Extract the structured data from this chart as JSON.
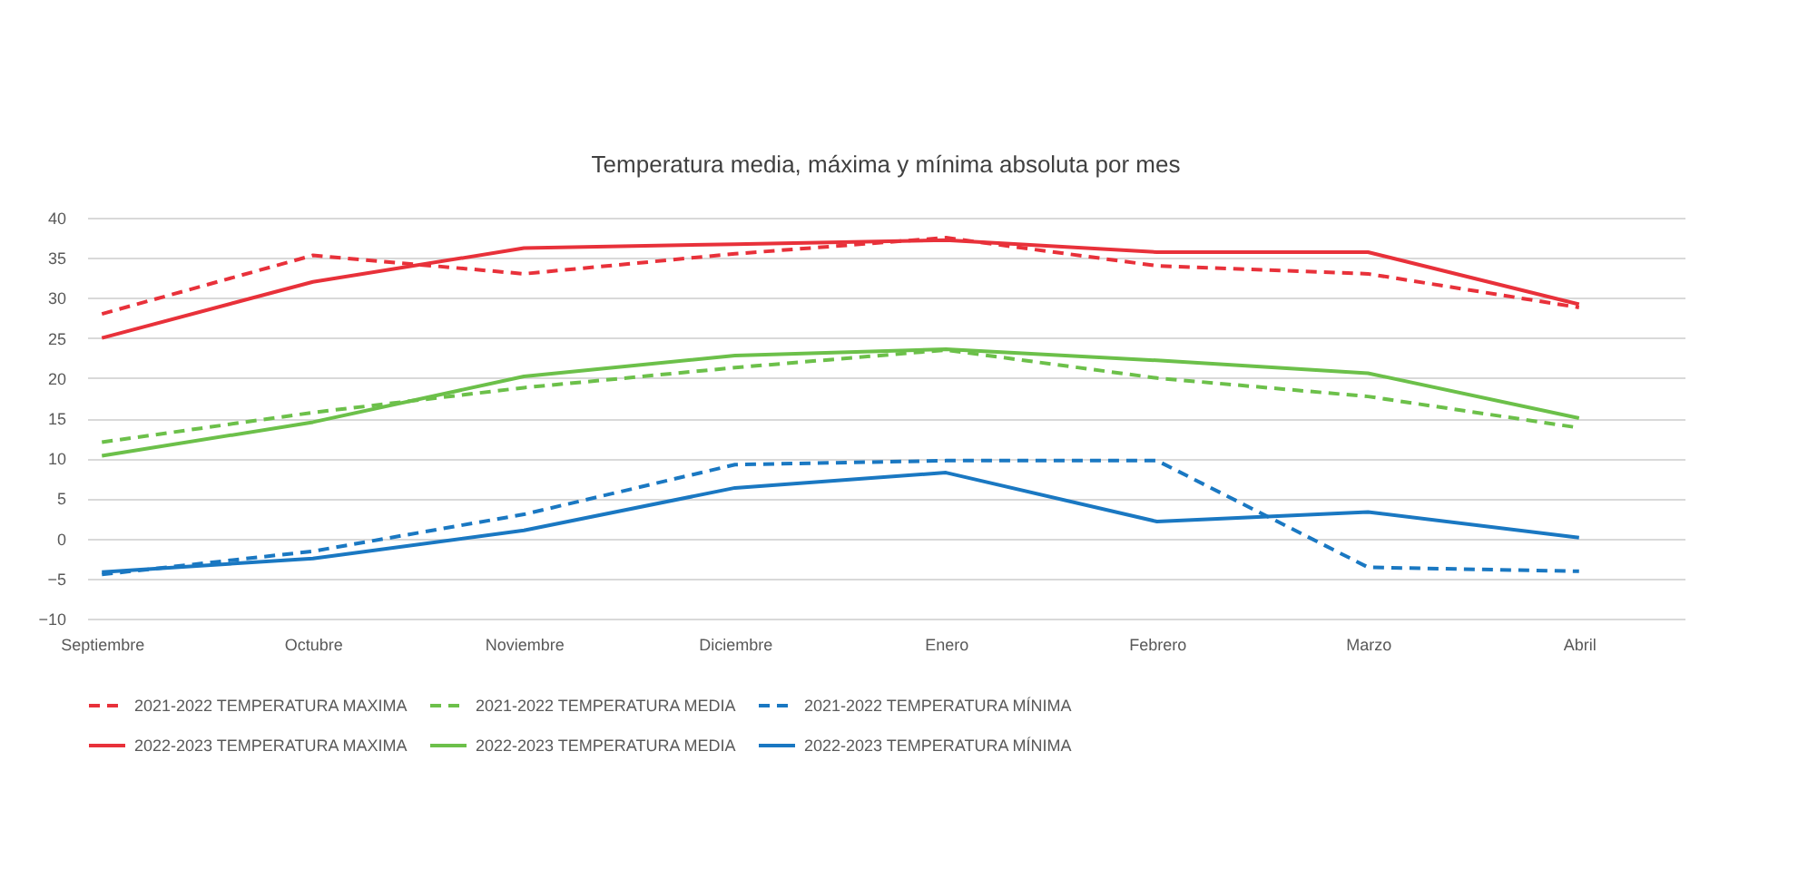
{
  "chart_data": {
    "type": "line",
    "title": "Temperatura media, máxima y mínima absoluta por mes",
    "categories": [
      "Septiembre",
      "Octubre",
      "Noviembre",
      "Diciembre",
      "Enero",
      "Febrero",
      "Marzo",
      "Abril"
    ],
    "series": [
      {
        "name": "2021-2022 TEMPERATURA MAXIMA",
        "color": "#e8313a",
        "line_style": "dashed",
        "values": [
          28,
          35.3,
          33,
          35.5,
          37.5,
          34,
          33,
          28.8
        ]
      },
      {
        "name": "2021-2022 TEMPERATURA MEDIA",
        "color": "#6cc04a",
        "line_style": "dashed",
        "values": [
          12,
          15.7,
          18.8,
          21.3,
          23.5,
          20,
          17.7,
          13.8
        ]
      },
      {
        "name": "2021-2022 TEMPERATURA MÍNIMA",
        "color": "#1a78c2",
        "line_style": "dashed",
        "values": [
          -4.5,
          -1.6,
          3,
          9.2,
          9.7,
          9.7,
          -3.6,
          -4.1
        ]
      },
      {
        "name": "2022-2023 TEMPERATURA MAXIMA",
        "color": "#e8313a",
        "line_style": "solid",
        "values": [
          25,
          32,
          36.2,
          36.7,
          37.2,
          35.7,
          35.7,
          29.2
        ]
      },
      {
        "name": "2022-2023 TEMPERATURA MEDIA",
        "color": "#6cc04a",
        "line_style": "solid",
        "values": [
          10.3,
          14.5,
          20.2,
          22.8,
          23.6,
          22.2,
          20.6,
          15
        ]
      },
      {
        "name": "2022-2023 TEMPERATURA MÍNIMA",
        "color": "#1a78c2",
        "line_style": "solid",
        "values": [
          -4.2,
          -2.5,
          1,
          6.3,
          8.2,
          2.1,
          3.3,
          0.1
        ]
      }
    ],
    "ylim": [
      -10,
      40
    ],
    "yticks": [
      -10,
      -5,
      0,
      5,
      10,
      15,
      20,
      25,
      30,
      35,
      40
    ],
    "grid": "y",
    "legend": "bottom",
    "marker": "none"
  }
}
